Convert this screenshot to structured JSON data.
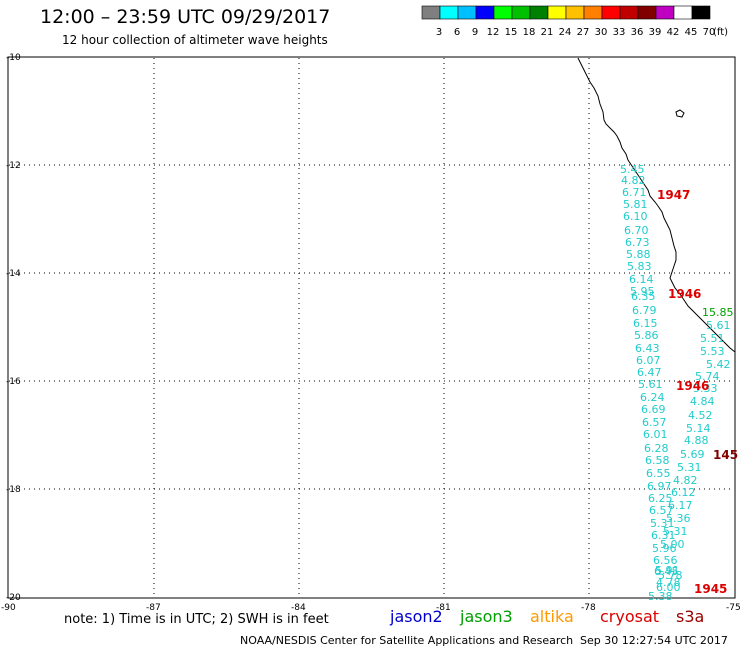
{
  "header": {
    "title": "12:00 – 23:59 UTC 09/29/2017",
    "subtitle": "12 hour collection of altimeter wave heights"
  },
  "colorbar": {
    "colors": [
      "#7f7f7f",
      "#00ffff",
      "#00bfff",
      "#0000ff",
      "#00ff00",
      "#00c000",
      "#008000",
      "#ffff00",
      "#ffc000",
      "#ff8000",
      "#ff0000",
      "#c00000",
      "#800000",
      "#c000c0",
      "#ffffff",
      "#000000"
    ],
    "labels": [
      "3",
      "6",
      "9",
      "12",
      "15",
      "18",
      "21",
      "24",
      "27",
      "30",
      "33",
      "36",
      "39",
      "42",
      "45",
      "70"
    ],
    "unit": "(ft)"
  },
  "map_axes": {
    "lat_labels": [
      "-10",
      "-12",
      "-14",
      "-16",
      "-18",
      "-20"
    ],
    "lon_labels": [
      "-90",
      "-87",
      "-84",
      "-81",
      "-78",
      "-75"
    ]
  },
  "pass_times": [
    {
      "text": "1947",
      "color": "#dd0000"
    },
    {
      "text": "1946",
      "color": "#dd0000"
    },
    {
      "text": "1946",
      "color": "#dd0000"
    },
    {
      "text": "145",
      "color": "#800000"
    },
    {
      "text": "1945",
      "color": "#dd0000"
    }
  ],
  "wave_heights": {
    "track_west": [
      "5.45",
      "4.82",
      "6.71",
      "5.81",
      "6.10",
      "6.70",
      "6.73",
      "5.88",
      "5.83",
      "6.14",
      "5.95",
      "6.35",
      "6.79",
      "6.15",
      "5.86",
      "6.43",
      "6.07",
      "6.47",
      "5.61",
      "6.24",
      "6.69",
      "6.57",
      "6.01",
      "6.28",
      "6.58",
      "6.55",
      "6.97",
      "6.25",
      "6.57",
      "5.31",
      "6.31",
      "5.96",
      "6.56",
      "6.45",
      "5.91",
      "4.78",
      "5.38"
    ],
    "track_west_color": "#22cccc",
    "track_mid": [
      "5.51",
      "5.53",
      "5.42",
      "5.74",
      "5.33",
      "4.84",
      "4.52",
      "5.14",
      "4.88",
      "5.69",
      "5.31",
      "4.82",
      "6.12",
      "6.17",
      "5.36",
      "5.31",
      "5.00",
      "5.78",
      "6.00"
    ],
    "track_mid_color": "#22cccc",
    "jason3_values": [
      "15.85",
      "5.61"
    ],
    "jason3_color": "#00a000"
  },
  "footer": {
    "note": "note:  1) Time is in UTC;  2) SWH is in feet",
    "satellites": [
      {
        "name": "jason2",
        "color": "#0000cc"
      },
      {
        "name": "jason3",
        "color": "#00a000"
      },
      {
        "name": "altika",
        "color": "#ff9900"
      },
      {
        "name": "cryosat",
        "color": "#dd0000"
      },
      {
        "name": "s3a",
        "color": "#990000"
      }
    ],
    "credit": "NOAA/NESDIS Center for Satellite Applications and Research",
    "timestamp": "Sep 30 12:27:54 UTC 2017"
  }
}
